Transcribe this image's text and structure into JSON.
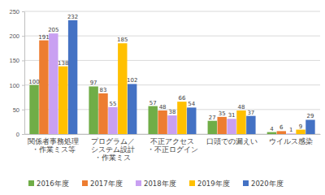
{
  "chart_data": {
    "type": "bar",
    "categories": [
      "関係者事務処理\n・作業ミス等",
      "プログラム／\nシステム設計\n・作業ミス",
      "不正アクセス\n・不正ログイン",
      "口頭での漏えい",
      "ウイルス感染"
    ],
    "series": [
      {
        "name": "2016年度",
        "color": "#70ad47",
        "values": [
          100,
          97,
          57,
          27,
          4
        ]
      },
      {
        "name": "2017年度",
        "color": "#ed7d31",
        "values": [
          191,
          83,
          48,
          35,
          6
        ]
      },
      {
        "name": "2018年度",
        "color": "#c9a0f2",
        "values": [
          205,
          55,
          38,
          31,
          1
        ]
      },
      {
        "name": "2019年度",
        "color": "#ffc000",
        "values": [
          138,
          185,
          66,
          48,
          9
        ]
      },
      {
        "name": "2020年度",
        "color": "#4472c4",
        "values": [
          232,
          102,
          54,
          37,
          29
        ]
      }
    ],
    "ylim": [
      0,
      250
    ],
    "yticks": [
      0,
      50,
      100,
      150,
      200,
      250
    ],
    "grid": true,
    "legend": "bottom",
    "data_labels": true
  }
}
